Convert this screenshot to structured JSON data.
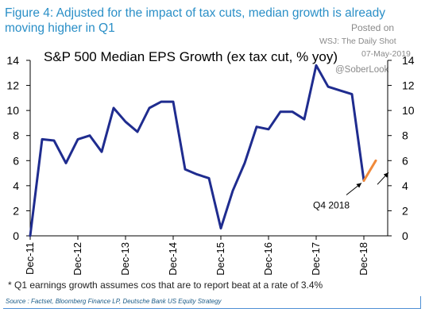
{
  "header": {
    "figure_title": "Figure 4: Adjusted for the impact of tax cuts, median growth is already moving higher in Q1",
    "posted_on": "Posted on",
    "source_tag": "WSJ: The Daily Shot",
    "posted_date": "07-May-2019",
    "handle": "@SoberLook"
  },
  "chart_data": {
    "type": "line",
    "title": "S&P 500 Median EPS Growth (ex tax cut, % yoy)",
    "xlabel": "",
    "ylabel": "",
    "ylim": [
      0,
      14
    ],
    "yticks": [
      0,
      2,
      4,
      6,
      8,
      10,
      12,
      14
    ],
    "x_tick_labels": [
      "Dec-11",
      "Dec-12",
      "Dec-13",
      "Dec-14",
      "Dec-15",
      "Dec-16",
      "Dec-17",
      "Dec-18"
    ],
    "x_range": [
      "Dec-11",
      "Jun-19"
    ],
    "grid": false,
    "series": [
      {
        "color": "#1f2c8f",
        "points": [
          {
            "x": "Dec-11",
            "y": 0.0
          },
          {
            "x": "Mar-12",
            "y": 7.7
          },
          {
            "x": "Jun-12",
            "y": 7.6
          },
          {
            "x": "Sep-12",
            "y": 5.8
          },
          {
            "x": "Dec-12",
            "y": 7.7
          },
          {
            "x": "Mar-13",
            "y": 8.0
          },
          {
            "x": "Jun-13",
            "y": 6.7
          },
          {
            "x": "Sep-13",
            "y": 10.2
          },
          {
            "x": "Dec-13",
            "y": 9.1
          },
          {
            "x": "Mar-14",
            "y": 8.3
          },
          {
            "x": "Jun-14",
            "y": 10.2
          },
          {
            "x": "Sep-14",
            "y": 10.7
          },
          {
            "x": "Dec-14",
            "y": 10.7
          },
          {
            "x": "Mar-15",
            "y": 5.3
          },
          {
            "x": "Jun-15",
            "y": 4.9
          },
          {
            "x": "Sep-15",
            "y": 4.6
          },
          {
            "x": "Dec-15",
            "y": 0.6
          },
          {
            "x": "Mar-16",
            "y": 3.6
          },
          {
            "x": "Jun-16",
            "y": 5.8
          },
          {
            "x": "Sep-16",
            "y": 8.7
          },
          {
            "x": "Dec-16",
            "y": 8.5
          },
          {
            "x": "Mar-17",
            "y": 9.9
          },
          {
            "x": "Jun-17",
            "y": 9.9
          },
          {
            "x": "Sep-17",
            "y": 9.3
          },
          {
            "x": "Dec-17",
            "y": 13.6
          },
          {
            "x": "Mar-18",
            "y": 11.9
          },
          {
            "x": "Jun-18",
            "y": 11.6
          },
          {
            "x": "Sep-18",
            "y": 11.3
          },
          {
            "x": "Dec-18",
            "y": 4.4
          }
        ]
      },
      {
        "color": "#f0893a",
        "points": [
          {
            "x": "Dec-18",
            "y": 4.4
          },
          {
            "x": "Mar-19",
            "y": 6.0
          }
        ]
      }
    ],
    "annotations": [
      {
        "text": "Q4 2018",
        "points_to": {
          "x": "Dec-18",
          "y": 4.4
        }
      },
      {
        "text": "",
        "points_to": {
          "x": "Mar-19",
          "y": 6.0
        }
      }
    ]
  },
  "footnote": "* Q1 earnings growth assumes cos that are to report beat at a rate of 3.4%",
  "source": "Source : Factset, Bloomberg Finance LP, Deutsche Bank US Equity Strategy"
}
